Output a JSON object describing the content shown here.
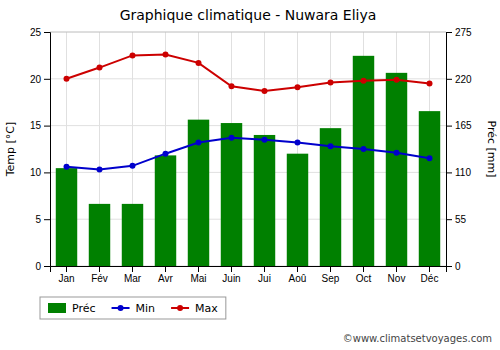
{
  "chart_data": {
    "type": "bar",
    "title": "Graphique climatique - Nuwara Eliya",
    "categories": [
      "Jan",
      "Fév",
      "Mar",
      "Avr",
      "Mai",
      "Juin",
      "Jui",
      "Aoû",
      "Sep",
      "Oct",
      "Nov",
      "Déc"
    ],
    "series": [
      {
        "name": "Préc",
        "type": "bar",
        "color": "#008000",
        "axis": "y2",
        "values": [
          115,
          73,
          73,
          130,
          172,
          168,
          154,
          132,
          162,
          247,
          227,
          182
        ]
      },
      {
        "name": "Min",
        "type": "line",
        "color": "#0000cc",
        "marker": "circle",
        "values": [
          10.6,
          10.3,
          10.7,
          12.0,
          13.2,
          13.7,
          13.5,
          13.2,
          12.8,
          12.5,
          12.1,
          11.5
        ]
      },
      {
        "name": "Max",
        "type": "line",
        "color": "#cc0000",
        "marker": "circle",
        "values": [
          20.0,
          21.2,
          22.5,
          22.6,
          21.7,
          19.2,
          18.7,
          19.1,
          19.6,
          19.8,
          19.9,
          19.5
        ]
      }
    ],
    "ylabel": "Temp [°C]",
    "y2label": "Préc [mm]",
    "ylim": [
      0,
      25
    ],
    "yticks": [
      0,
      5,
      10,
      15,
      20,
      25
    ],
    "y2lim": [
      0,
      275
    ],
    "y2ticks": [
      0,
      55,
      110,
      165,
      220,
      275
    ],
    "grid": true,
    "legend": "bottom",
    "annotations": [
      "©www.climatsetvoyages.com"
    ]
  }
}
